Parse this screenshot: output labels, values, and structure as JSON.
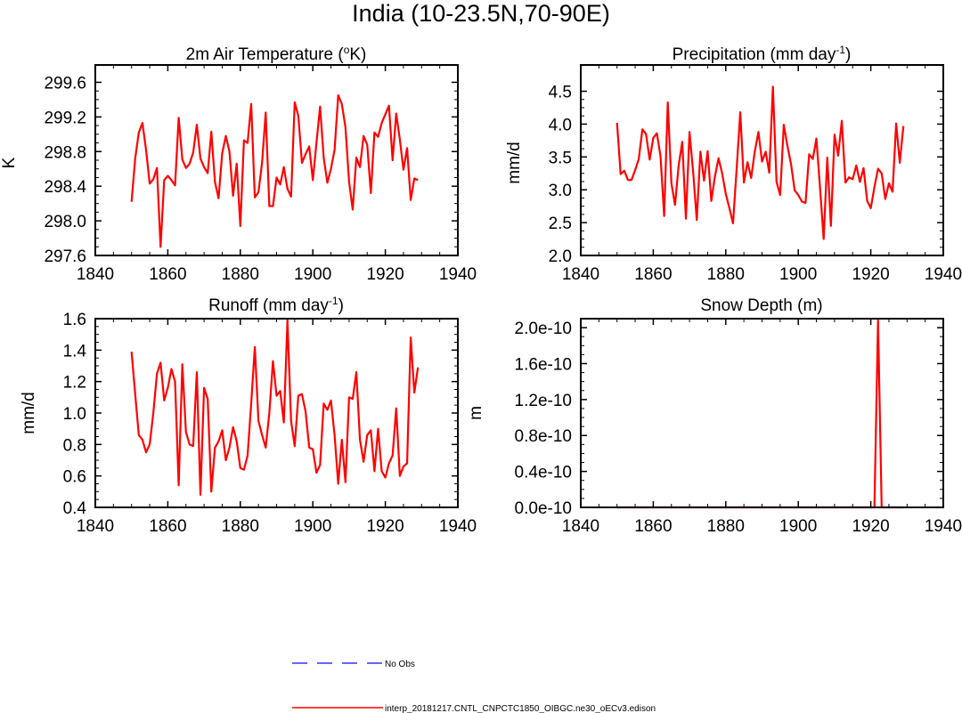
{
  "figure_title": "India (10-23.5N,70-90E)",
  "colors": {
    "series": "#ff0000",
    "obs": "#3333ff",
    "axis": "#000000"
  },
  "legend": {
    "obs_label": "No Obs",
    "model_label": "interp_20181217.CNTL_CNPCTC1850_OIBGC.ne30_oECv3.edison"
  },
  "chart_data": [
    {
      "type": "line",
      "title": "2m Air Temperature (oK)",
      "ylabel": "K",
      "xlim": [
        1840,
        1940
      ],
      "ylim": [
        297.6,
        299.8
      ],
      "xticks": [
        1840,
        1860,
        1880,
        1900,
        1920,
        1940
      ],
      "yticks": [
        297.6,
        298.0,
        298.4,
        298.8,
        299.2,
        299.6
      ],
      "ytick_labels": [
        "297.6",
        "298.0",
        "298.4",
        "298.8",
        "299.2",
        "299.6"
      ],
      "x_start": 1850,
      "series": [
        {
          "name": "model",
          "values": [
            298.22,
            298.72,
            299.02,
            299.13,
            298.82,
            298.43,
            298.48,
            298.61,
            297.7,
            298.47,
            298.52,
            298.47,
            298.41,
            299.19,
            298.71,
            298.61,
            298.66,
            298.79,
            299.11,
            298.72,
            298.62,
            298.55,
            299.03,
            298.45,
            298.26,
            298.78,
            298.98,
            298.8,
            298.29,
            298.66,
            297.94,
            298.93,
            298.9,
            299.35,
            298.27,
            298.33,
            298.67,
            299.25,
            298.17,
            298.17,
            298.5,
            298.42,
            298.62,
            298.37,
            298.28,
            299.37,
            299.21,
            298.67,
            298.77,
            298.86,
            298.47,
            298.9,
            299.32,
            298.73,
            298.44,
            298.6,
            298.82,
            299.45,
            299.35,
            299.08,
            298.45,
            298.13,
            298.73,
            298.62,
            298.98,
            298.88,
            298.32,
            299.02,
            298.97,
            299.13,
            299.23,
            299.33,
            298.7,
            299.24,
            298.94,
            298.59,
            298.84,
            298.24,
            298.49,
            298.47
          ]
        }
      ]
    },
    {
      "type": "line",
      "title": "Precipitation (mm day-1)",
      "ylabel": "mm/d",
      "xlim": [
        1840,
        1940
      ],
      "ylim": [
        2.0,
        4.9
      ],
      "xticks": [
        1840,
        1860,
        1880,
        1900,
        1920,
        1940
      ],
      "yticks": [
        2.0,
        2.5,
        3.0,
        3.5,
        4.0,
        4.5
      ],
      "ytick_labels": [
        "2.0",
        "2.5",
        "3.0",
        "3.5",
        "4.0",
        "4.5"
      ],
      "x_start": 1850,
      "series": [
        {
          "name": "model",
          "values": [
            4.02,
            3.24,
            3.29,
            3.15,
            3.15,
            3.3,
            3.47,
            3.92,
            3.85,
            3.46,
            3.79,
            3.86,
            3.51,
            2.6,
            4.33,
            3.1,
            2.77,
            3.37,
            3.73,
            2.56,
            3.88,
            3.27,
            2.54,
            3.58,
            3.14,
            3.59,
            2.83,
            3.2,
            3.48,
            3.25,
            2.94,
            2.72,
            2.49,
            3.32,
            4.18,
            3.11,
            3.42,
            3.18,
            3.58,
            3.88,
            3.43,
            3.58,
            3.26,
            4.57,
            3.12,
            2.92,
            3.99,
            3.67,
            3.39,
            2.99,
            2.92,
            2.82,
            2.8,
            3.54,
            3.47,
            3.78,
            3.03,
            2.25,
            3.49,
            2.45,
            3.84,
            3.52,
            4.05,
            3.11,
            3.19,
            3.16,
            3.37,
            3.12,
            3.33,
            2.83,
            2.72,
            3.04,
            3.32,
            3.25,
            2.86,
            3.1,
            2.97,
            4.01,
            3.41,
            3.97
          ]
        }
      ]
    },
    {
      "type": "line",
      "title": "Runoff (mm day-1)",
      "ylabel": "mm/d",
      "xlim": [
        1840,
        1940
      ],
      "ylim": [
        0.4,
        1.6
      ],
      "xticks": [
        1840,
        1860,
        1880,
        1900,
        1920,
        1940
      ],
      "yticks": [
        0.4,
        0.6,
        0.8,
        1.0,
        1.2,
        1.4,
        1.6
      ],
      "ytick_labels": [
        "0.4",
        "0.6",
        "0.8",
        "1.0",
        "1.2",
        "1.4",
        "1.6"
      ],
      "x_start": 1850,
      "series": [
        {
          "name": "model",
          "values": [
            1.39,
            1.12,
            0.86,
            0.83,
            0.75,
            0.8,
            1.0,
            1.25,
            1.32,
            1.08,
            1.16,
            1.28,
            1.2,
            0.54,
            1.31,
            0.88,
            0.8,
            0.79,
            1.26,
            0.48,
            1.16,
            1.09,
            0.5,
            0.78,
            0.82,
            0.89,
            0.7,
            0.78,
            0.91,
            0.82,
            0.65,
            0.64,
            0.73,
            1.06,
            1.42,
            0.95,
            0.86,
            0.78,
            1.0,
            1.33,
            1.11,
            1.14,
            0.94,
            1.59,
            0.95,
            0.79,
            1.11,
            1.12,
            1.01,
            0.78,
            0.77,
            0.62,
            0.67,
            1.06,
            1.02,
            1.08,
            0.86,
            0.55,
            0.83,
            0.56,
            1.1,
            1.09,
            1.26,
            0.83,
            0.69,
            0.86,
            0.89,
            0.63,
            0.9,
            0.63,
            0.59,
            0.68,
            0.73,
            1.03,
            0.6,
            0.66,
            0.68,
            1.48,
            1.13,
            1.29
          ]
        }
      ]
    },
    {
      "type": "line",
      "title": "Snow Depth (m)",
      "ylabel": "m",
      "xlim": [
        1840,
        1940
      ],
      "ylim": [
        0.0,
        2.1e-10
      ],
      "xticks": [
        1840,
        1860,
        1880,
        1900,
        1920,
        1940
      ],
      "yticks": [
        0.0,
        4e-11,
        8e-11,
        1.2e-10,
        1.6e-10,
        2e-10
      ],
      "ytick_labels": [
        "0.0e-10",
        "0.4e-10",
        "0.8e-10",
        "1.2e-10",
        "1.6e-10",
        "2.0e-10"
      ],
      "x_start": 1850,
      "series": [
        {
          "name": "model",
          "values": [
            0,
            0,
            0,
            0,
            0,
            0,
            0,
            0,
            0,
            0,
            0,
            0,
            0,
            0,
            0,
            0,
            0,
            0,
            0,
            0,
            0,
            0,
            0,
            0,
            0,
            0,
            0,
            0,
            0,
            0,
            0,
            0,
            0,
            0,
            0,
            0,
            0,
            0,
            0,
            0,
            0,
            0,
            0,
            0,
            0,
            0,
            0,
            0,
            0,
            0,
            0,
            0,
            0,
            0,
            0,
            0,
            0,
            0,
            0,
            0,
            0,
            0,
            0,
            0,
            0,
            0,
            0,
            0,
            0,
            0,
            0,
            0,
            2.08e-10,
            0,
            0,
            0,
            0,
            0,
            0,
            0
          ]
        }
      ]
    }
  ]
}
